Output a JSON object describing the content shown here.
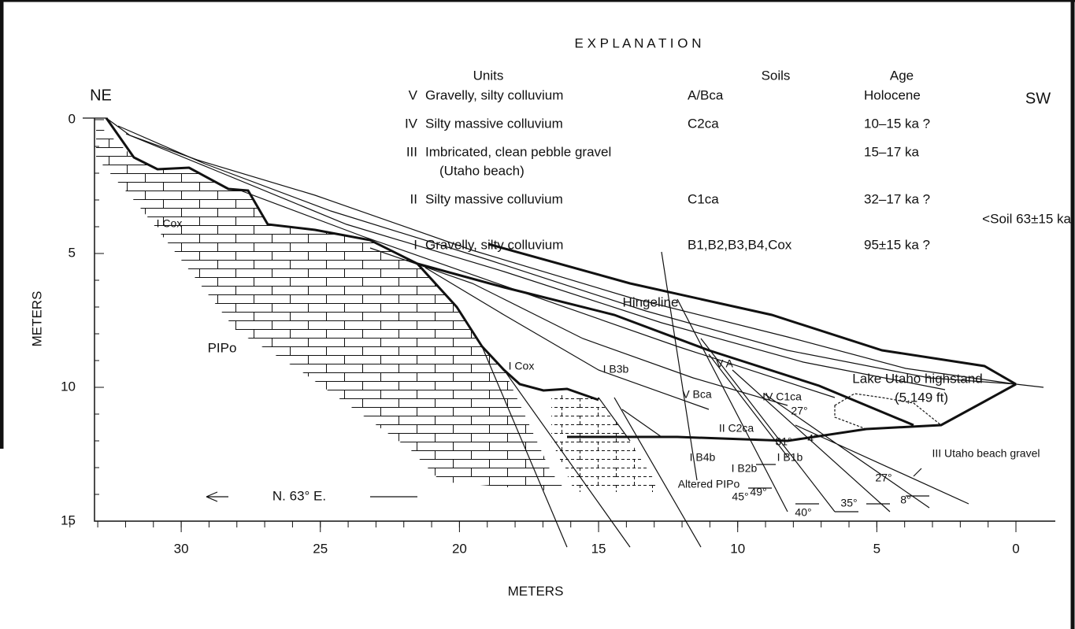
{
  "header": {
    "title": "E X P L A N A T I O N"
  },
  "legend": {
    "columns": [
      "Units",
      "Soils",
      "Age"
    ],
    "rows": [
      {
        "numeral": "V",
        "unit": "Gravelly, silty colluvium",
        "soil": "A/Bca",
        "age": "Holocene"
      },
      {
        "numeral": "IV",
        "unit": "Silty massive colluvium",
        "soil": "C2ca",
        "age": "10–15 ka ?"
      },
      {
        "numeral": "III",
        "unit": "Imbricated, clean pebble gravel",
        "unit_continued": "(Utaho beach)",
        "age": "15–17 ka"
      },
      {
        "numeral": "II",
        "unit": "Silty massive colluvium",
        "soil": "C1ca",
        "age": "32–17 ka ?",
        "note": "<Soil 63±15 ka"
      },
      {
        "numeral": "I",
        "unit": "Gravelly, silty colluvium",
        "soil": "B1,B2,B3,B4,Cox",
        "age": "95±15 ka ?"
      }
    ]
  },
  "orientation": {
    "left": "NE",
    "right": "SW",
    "bearing": "N. 63° E."
  },
  "axes": {
    "y_label": "METERS",
    "x_label": "METERS",
    "y_ticks": [
      0,
      5,
      10,
      15
    ],
    "x_ticks": [
      30,
      25,
      20,
      15,
      10,
      5,
      0
    ]
  },
  "labels": [
    "I Cox",
    "PIPo",
    "Hingeline",
    "V A",
    "V Bca",
    "Lake Utaho highstand",
    "(5,149 ft)",
    "IV C1ca",
    "I Cox",
    "I B3b",
    "II C2ca",
    "III Utaho beach gravel",
    "I B4b",
    "I B2b",
    "I B1b",
    "Altered PIPo"
  ],
  "angles": [
    "27°",
    "4°",
    "31°",
    "45°",
    "49°",
    "40°",
    "35°",
    "27°",
    "8°"
  ]
}
